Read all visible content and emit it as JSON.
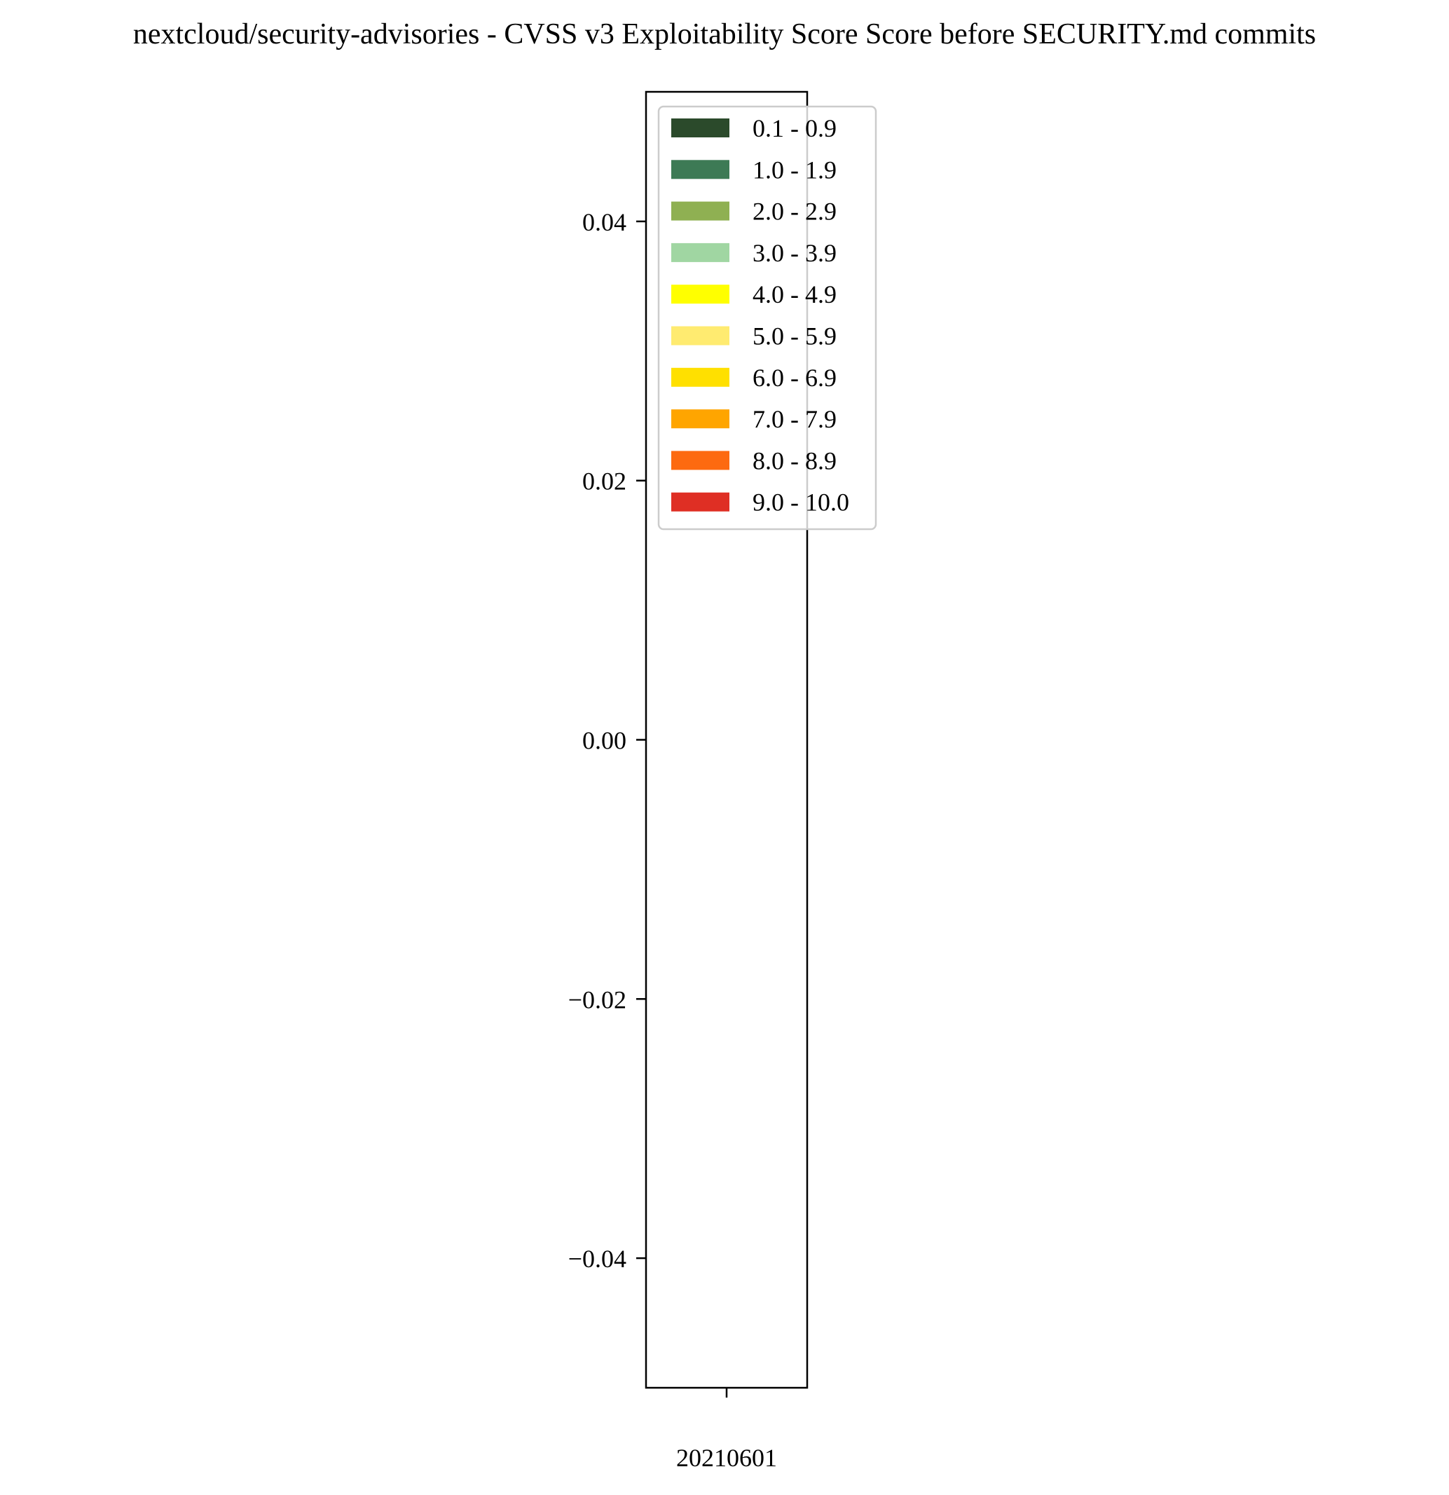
{
  "chart_data": {
    "type": "bar",
    "title": "nextcloud/security-advisories - CVSS v3 Exploitability Score Score before SECURITY.md commits",
    "xlabel": "",
    "ylabel": "",
    "categories": [
      "20210601"
    ],
    "ylim": [
      -0.05,
      0.05
    ],
    "yticks": [
      -0.04,
      -0.02,
      0.0,
      0.02,
      0.04
    ],
    "ytick_labels": [
      "−0.04",
      "−0.02",
      "0.00",
      "0.02",
      "0.04"
    ],
    "grid": false,
    "legend_position": "top-right",
    "stacked": true,
    "series": [
      {
        "name": "0.1 - 0.9",
        "color": "#2b4a2b",
        "values": [
          0
        ]
      },
      {
        "name": "1.0 - 1.9",
        "color": "#3d7a55",
        "values": [
          0
        ]
      },
      {
        "name": "2.0 - 2.9",
        "color": "#8fb052",
        "values": [
          0
        ]
      },
      {
        "name": "3.0 - 3.9",
        "color": "#a0d6a2",
        "values": [
          0
        ]
      },
      {
        "name": "4.0 - 4.9",
        "color": "#ffff00",
        "values": [
          0
        ]
      },
      {
        "name": "5.0 - 5.9",
        "color": "#ffeb70",
        "values": [
          0
        ]
      },
      {
        "name": "6.0 - 6.9",
        "color": "#ffe000",
        "values": [
          0
        ]
      },
      {
        "name": "7.0 - 7.9",
        "color": "#ffa500",
        "values": [
          0
        ]
      },
      {
        "name": "8.0 - 8.9",
        "color": "#fd6a10",
        "values": [
          0
        ]
      },
      {
        "name": "9.0 - 10.0",
        "color": "#df2f24",
        "values": [
          0
        ]
      }
    ]
  }
}
